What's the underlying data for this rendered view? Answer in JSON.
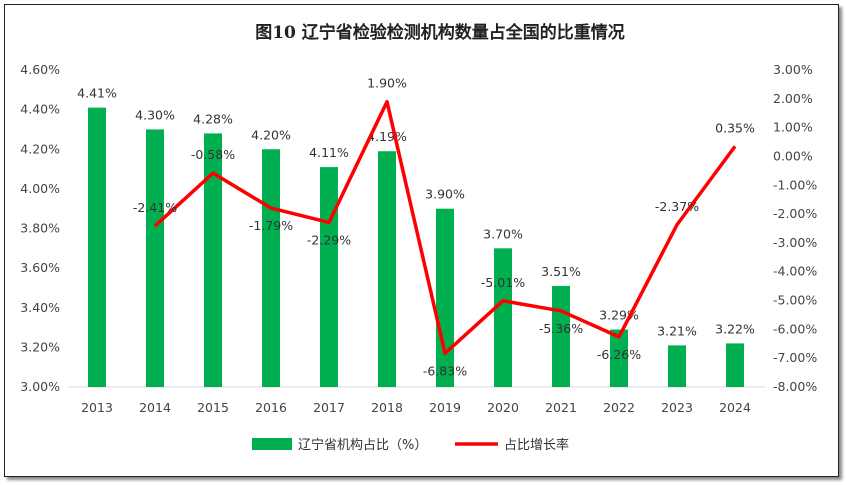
{
  "chart_data": {
    "type": "bar+line",
    "title": "图10 辽宁省检验检测机构数量占全国的比重情况",
    "categories": [
      "2013",
      "2014",
      "2015",
      "2016",
      "2017",
      "2018",
      "2019",
      "2020",
      "2021",
      "2022",
      "2023",
      "2024"
    ],
    "y_left": {
      "min": 3.0,
      "max": 4.6,
      "step": 0.2,
      "ticks": [
        "3.00%",
        "3.20%",
        "3.40%",
        "3.60%",
        "3.80%",
        "4.00%",
        "4.20%",
        "4.40%",
        "4.60%"
      ]
    },
    "y_right": {
      "min": -8.0,
      "max": 3.0,
      "step": 1.0,
      "ticks": [
        "-8.00%",
        "-7.00%",
        "-6.00%",
        "-5.00%",
        "-4.00%",
        "-3.00%",
        "-2.00%",
        "-1.00%",
        "0.00%",
        "1.00%",
        "2.00%",
        "3.00%"
      ]
    },
    "grid": false,
    "legend_position": "bottom",
    "series": [
      {
        "name": "辽宁省机构占比（%）",
        "type": "bar",
        "axis": "left",
        "color": "#00B050",
        "values": [
          4.41,
          4.3,
          4.28,
          4.2,
          4.11,
          4.19,
          3.9,
          3.7,
          3.51,
          3.29,
          3.21,
          3.22
        ],
        "labels": [
          "4.41%",
          "4.30%",
          "4.28%",
          "4.20%",
          "4.11%",
          "4.19%",
          "3.90%",
          "3.70%",
          "3.51%",
          "3.29%",
          "3.21%",
          "3.22%"
        ]
      },
      {
        "name": "占比增长率",
        "type": "line",
        "axis": "right",
        "color": "#FF0000",
        "values": [
          null,
          -2.41,
          -0.58,
          -1.79,
          -2.29,
          1.9,
          -6.83,
          -5.01,
          -5.36,
          -6.26,
          -2.37,
          0.35
        ],
        "labels": [
          null,
          "-2.41%",
          "-0.58%",
          "-1.79%",
          "-2.29%",
          "1.90%",
          "-6.83%",
          "-5.01%",
          "-5.36%",
          "-6.26%",
          "-2.37%",
          "0.35%"
        ],
        "label_side": [
          null,
          "above",
          "above",
          "below",
          "below",
          "above",
          "below",
          "above",
          "below",
          "below",
          "above",
          "above"
        ]
      }
    ]
  }
}
